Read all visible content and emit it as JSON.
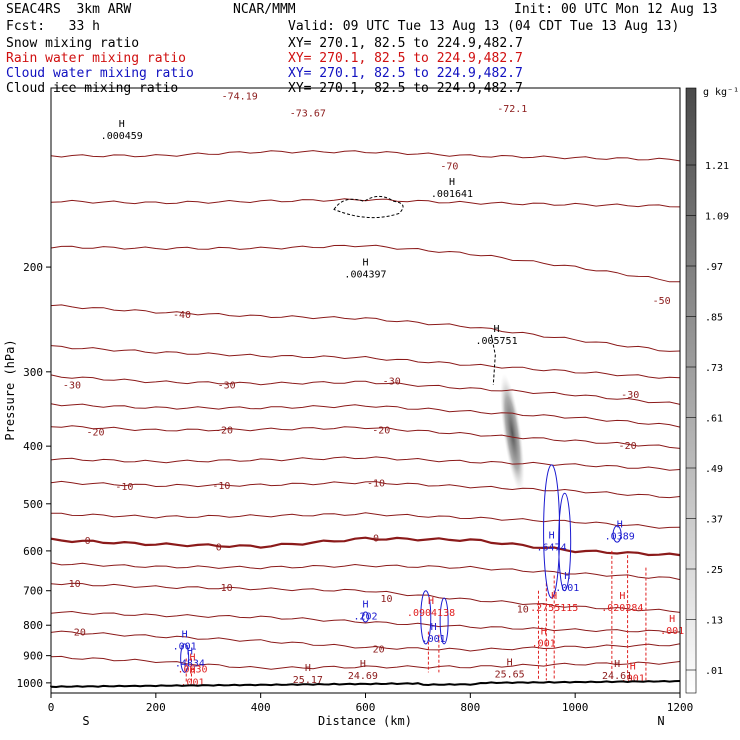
{
  "header": {
    "model": "SEAC4RS  3km ARW",
    "org": "NCAR/MMM",
    "init": "Init: 00 UTC Mon 12 Aug 13",
    "fcst": "Fcst:   33 h",
    "valid": "Valid: 09 UTC Tue 13 Aug 13 (04 CDT Tue 13 Aug 13)",
    "fields": [
      {
        "label": "Snow mixing ratio",
        "xy": "XY= 270.1, 82.5 to 224.9,482.7",
        "color": "#000000"
      },
      {
        "label": "Rain water mixing ratio",
        "xy": "XY= 270.1, 82.5 to 224.9,482.7",
        "color": "#d01010"
      },
      {
        "label": "Cloud water mixing ratio",
        "xy": "XY= 270.1, 82.5 to 224.9,482.7",
        "color": "#1010c0"
      },
      {
        "label": "Cloud ice mixing ratio",
        "xy": "XY= 270.1, 82.5 to 224.9,482.7",
        "color": "#000000"
      }
    ]
  },
  "colors": {
    "temperature": "#8b1a1a",
    "rain": "#e02020",
    "cloud_water": "#1a1ad0",
    "snow": "#000000",
    "terrain": "#000000"
  },
  "chart_data": {
    "type": "cross-section",
    "xlabel": "Distance (km)",
    "ylabel": "Pressure (hPa)",
    "x_ticks": [
      0,
      200,
      400,
      600,
      800,
      1000,
      1200
    ],
    "y_ticks": [
      200,
      300,
      400,
      500,
      600,
      700,
      800,
      900,
      1000
    ],
    "xlim": [
      0,
      1200
    ],
    "ylim": [
      100,
      1040
    ],
    "y_scale": "log",
    "left_end_label": "S",
    "right_end_label": "N",
    "colorbar": {
      "unit": "g kg⁻¹",
      "labels": [
        "1.21",
        "1.09",
        ".97",
        ".85",
        ".73",
        ".61",
        ".49",
        ".37",
        ".25",
        ".13",
        ".01"
      ]
    },
    "isotherm_labels": [
      "-73.67",
      "-74.19",
      "-72.1",
      "-70",
      "-50",
      "-40",
      "-30",
      "-20",
      "-10",
      "0",
      "10",
      "20"
    ],
    "isotherm_label_positions": [
      {
        "text": "-73.67",
        "x": 490,
        "p": 110
      },
      {
        "text": "-74.19",
        "x": 360,
        "p": 103
      },
      {
        "text": "-72.1",
        "x": 880,
        "p": 108
      },
      {
        "text": "-70",
        "x": 760,
        "p": 135
      },
      {
        "text": "-50",
        "x": 1165,
        "p": 227
      },
      {
        "text": "-40",
        "x": 250,
        "p": 240
      },
      {
        "text": "-30",
        "x": 40,
        "p": 315
      },
      {
        "text": "-30",
        "x": 335,
        "p": 315
      },
      {
        "text": "-30",
        "x": 650,
        "p": 310
      },
      {
        "text": "-30",
        "x": 1105,
        "p": 327
      },
      {
        "text": "-20",
        "x": 85,
        "p": 378
      },
      {
        "text": "-20",
        "x": 330,
        "p": 375
      },
      {
        "text": "-20",
        "x": 630,
        "p": 375
      },
      {
        "text": "-20",
        "x": 1100,
        "p": 398
      },
      {
        "text": "-10",
        "x": 140,
        "p": 467
      },
      {
        "text": "-10",
        "x": 325,
        "p": 465
      },
      {
        "text": "-10",
        "x": 620,
        "p": 460
      },
      {
        "text": "0",
        "x": 70,
        "p": 575
      },
      {
        "text": "0",
        "x": 320,
        "p": 590
      },
      {
        "text": "0",
        "x": 620,
        "p": 570
      },
      {
        "text": "10",
        "x": 45,
        "p": 680
      },
      {
        "text": "10",
        "x": 335,
        "p": 690
      },
      {
        "text": "10",
        "x": 640,
        "p": 720
      },
      {
        "text": "10",
        "x": 900,
        "p": 750
      },
      {
        "text": "20",
        "x": 55,
        "p": 820
      },
      {
        "text": "20",
        "x": 625,
        "p": 875
      }
    ],
    "isotherms": [
      {
        "t": -70,
        "p": [
          130,
          130,
          128,
          128,
          130,
          131,
          132
        ]
      },
      {
        "t": -60,
        "p": [
          155,
          156,
          155,
          154,
          156,
          157,
          158
        ]
      },
      {
        "t": -50,
        "p": [
          185,
          186,
          186,
          184,
          190,
          200,
          212
        ]
      },
      {
        "t": -40,
        "p": [
          232,
          238,
          242,
          244,
          252,
          265,
          278
        ]
      },
      {
        "t": -35,
        "p": [
          272,
          278,
          282,
          284,
          292,
          300,
          308
        ]
      },
      {
        "t": -30,
        "p": [
          305,
          312,
          314,
          312,
          320,
          328,
          340
        ]
      },
      {
        "t": -25,
        "p": [
          340,
          345,
          345,
          342,
          350,
          358,
          370
        ]
      },
      {
        "t": -20,
        "p": [
          370,
          376,
          375,
          372,
          382,
          392,
          402
        ]
      },
      {
        "t": -15,
        "p": [
          420,
          425,
          422,
          418,
          425,
          430,
          438
        ]
      },
      {
        "t": -10,
        "p": [
          460,
          466,
          465,
          460,
          468,
          476,
          488
        ]
      },
      {
        "t": -5,
        "p": [
          520,
          526,
          524,
          520,
          528,
          536,
          550
        ]
      },
      {
        "t": 0,
        "p": [
          575,
          585,
          590,
          572,
          575,
          600,
          610
        ]
      },
      {
        "t": 5,
        "p": [
          630,
          638,
          640,
          635,
          640,
          655,
          668
        ]
      },
      {
        "t": 10,
        "p": [
          680,
          690,
          695,
          700,
          725,
          745,
          758
        ]
      },
      {
        "t": 15,
        "p": [
          760,
          770,
          775,
          790,
          805,
          815,
          820
        ]
      },
      {
        "t": 20,
        "p": [
          820,
          835,
          850,
          872,
          880,
          870,
          862
        ]
      },
      {
        "t": 25,
        "p": [
          905,
          920,
          945,
          940,
          940,
          930,
          925
        ]
      }
    ],
    "snow_max_labels": [
      {
        "text": ".004397",
        "x": 600,
        "p": 205
      },
      {
        "text": ".001641",
        "x": 765,
        "p": 150
      },
      {
        "text": ".005751",
        "x": 850,
        "p": 265
      },
      {
        "text": ".000459",
        "x": 135,
        "p": 120
      }
    ],
    "cloud_water_labels": [
      {
        "text": ".001",
        "x": 255,
        "p": 865
      },
      {
        "text": ".4834",
        "x": 265,
        "p": 925
      },
      {
        "text": ".202",
        "x": 600,
        "p": 770
      },
      {
        "text": ".001",
        "x": 730,
        "p": 840
      },
      {
        "text": ".6474",
        "x": 955,
        "p": 590
      },
      {
        "text": ".001",
        "x": 985,
        "p": 690
      },
      {
        "text": ".0389",
        "x": 1085,
        "p": 565
      }
    ],
    "rain_labels": [
      {
        "text": ".001",
        "x": 270,
        "p": 995
      },
      {
        "text": ".0530",
        "x": 270,
        "p": 945
      },
      {
        "text": ".001",
        "x": 940,
        "p": 855
      },
      {
        "text": ".2755115",
        "x": 960,
        "p": 745
      },
      {
        "text": ".020284",
        "x": 1090,
        "p": 745
      },
      {
        "text": ".001",
        "x": 1185,
        "p": 815
      },
      {
        "text": ".001",
        "x": 1110,
        "p": 980
      },
      {
        "text": ".0904138",
        "x": 725,
        "p": 760
      }
    ],
    "maxima_T": [
      {
        "text": "25.17",
        "x": 490,
        "p": 985
      },
      {
        "text": "24.69",
        "x": 595,
        "p": 970
      },
      {
        "text": "25.65",
        "x": 875,
        "p": 965
      },
      {
        "text": "24.61",
        "x": 1080,
        "p": 970
      }
    ]
  }
}
